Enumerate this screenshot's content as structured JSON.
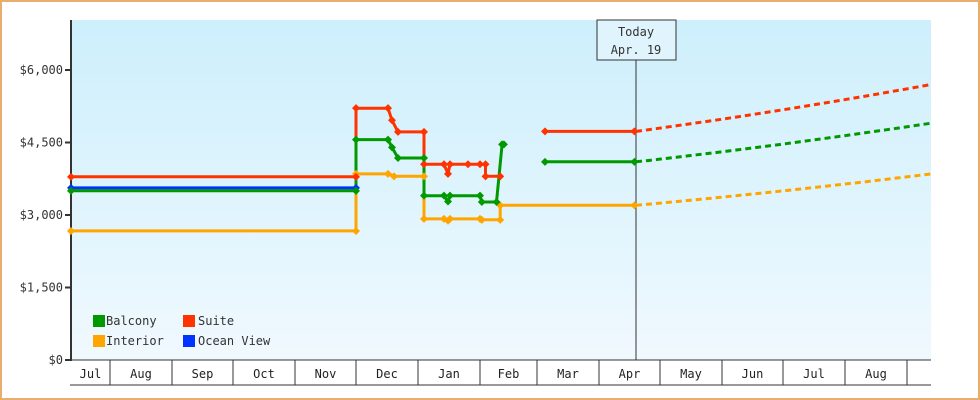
{
  "chart_data": {
    "type": "line",
    "title": "",
    "xlabel": "",
    "ylabel": "",
    "ylim": [
      0,
      7000
    ],
    "y_ticks": [
      {
        "value": 0,
        "label": "$0"
      },
      {
        "value": 1500,
        "label": "$1,500"
      },
      {
        "value": 3000,
        "label": "$3,000"
      },
      {
        "value": 4500,
        "label": "$4,500"
      },
      {
        "value": 6000,
        "label": "$6,000"
      }
    ],
    "x_months": [
      "Jul",
      "Aug",
      "Sep",
      "Oct",
      "Nov",
      "Dec",
      "Jan",
      "Feb",
      "Mar",
      "Apr",
      "May",
      "Jun",
      "Jul",
      "Aug"
    ],
    "grid": false,
    "legend_position": "bottom-left inside plot",
    "today_marker": {
      "line1": "Today",
      "line2": "Apr. 19"
    },
    "series": [
      {
        "name": "Balcony",
        "color": "#009900",
        "points": [
          [
            "Jul 1",
            3500
          ],
          [
            "Dec 1",
            3500
          ],
          [
            "Dec 1",
            4560
          ],
          [
            "Dec 17",
            4560
          ],
          [
            "Dec 19",
            4400
          ],
          [
            "Dec 22",
            4180
          ],
          [
            "Jan 4",
            4180
          ],
          [
            "Jan 4",
            3400
          ],
          [
            "Jan 14",
            3400
          ],
          [
            "Jan 16",
            3280
          ],
          [
            "Jan 17",
            3400
          ],
          [
            "Feb 1",
            3400
          ],
          [
            "Feb 2",
            3270
          ],
          [
            "Feb 10",
            3270
          ],
          [
            "Feb 13",
            4460
          ],
          [
            "Feb 14",
            4460
          ]
        ],
        "segment2": [
          [
            "Mar 5",
            4100
          ],
          [
            "Apr 19",
            4100
          ]
        ],
        "forecast": [
          [
            "Apr 19",
            4100
          ],
          [
            "Aug 31",
            4900
          ]
        ]
      },
      {
        "name": "Suite",
        "color": "#ff3300",
        "points": [
          [
            "Jul 1",
            3790
          ],
          [
            "Dec 1",
            3790
          ],
          [
            "Dec 1",
            5210
          ],
          [
            "Dec 17",
            5210
          ],
          [
            "Dec 19",
            4960
          ],
          [
            "Dec 22",
            4720
          ],
          [
            "Jan 4",
            4720
          ],
          [
            "Jan 4",
            4050
          ],
          [
            "Jan 14",
            4050
          ],
          [
            "Jan 16",
            3850
          ],
          [
            "Jan 17",
            4050
          ],
          [
            "Jan 26",
            4050
          ],
          [
            "Feb 1",
            4050
          ],
          [
            "Feb 4",
            4050
          ],
          [
            "Feb 4",
            3800
          ],
          [
            "Feb 12",
            3800
          ]
        ],
        "segment2": [
          [
            "Mar 5",
            4730
          ],
          [
            "Apr 19",
            4730
          ]
        ],
        "forecast": [
          [
            "Apr 19",
            4730
          ],
          [
            "Aug 31",
            5700
          ]
        ]
      },
      {
        "name": "Interior",
        "color": "#ffa500",
        "points": [
          [
            "Jul 1",
            2670
          ],
          [
            "Dec 1",
            2670
          ],
          [
            "Dec 1",
            3850
          ],
          [
            "Dec 17",
            3850
          ],
          [
            "Dec 20",
            3800
          ],
          [
            "Jan 4",
            3800
          ],
          [
            "Jan 4",
            2920
          ],
          [
            "Jan 14",
            2920
          ],
          [
            "Jan 16",
            2880
          ],
          [
            "Jan 17",
            2920
          ],
          [
            "Feb 1",
            2920
          ],
          [
            "Feb 2",
            2900
          ],
          [
            "Feb 12",
            2900
          ],
          [
            "Feb 12",
            3200
          ],
          [
            "Apr 19",
            3200
          ]
        ],
        "forecast": [
          [
            "Apr 19",
            3200
          ],
          [
            "Aug 31",
            3850
          ]
        ]
      },
      {
        "name": "Ocean View",
        "color": "#0033ff",
        "points": [
          [
            "Jul 1",
            3560
          ],
          [
            "Dec 1",
            3560
          ]
        ]
      }
    ]
  },
  "legend": {
    "items": [
      {
        "label": "Balcony",
        "color": "#009900"
      },
      {
        "label": "Suite",
        "color": "#ff3300"
      },
      {
        "label": "Interior",
        "color": "#ffa500"
      },
      {
        "label": "Ocean View",
        "color": "#0033ff"
      }
    ]
  },
  "today": {
    "line1": "Today",
    "line2": "Apr. 19"
  },
  "colors": {
    "frame": "#e8ae6c",
    "plot_top": "#cdeffc",
    "plot_bottom": "#f0f9fe",
    "axis": "#333333"
  }
}
